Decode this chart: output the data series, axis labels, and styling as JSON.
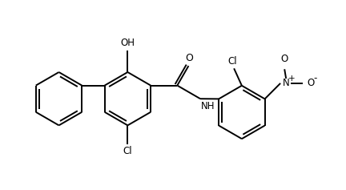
{
  "bg_color": "#ffffff",
  "line_color": "#000000",
  "line_width": 1.4,
  "font_size": 8.5,
  "figsize": [
    4.32,
    2.37
  ],
  "dpi": 100,
  "xlim": [
    0,
    10
  ],
  "ylim": [
    -2.8,
    3.2
  ]
}
